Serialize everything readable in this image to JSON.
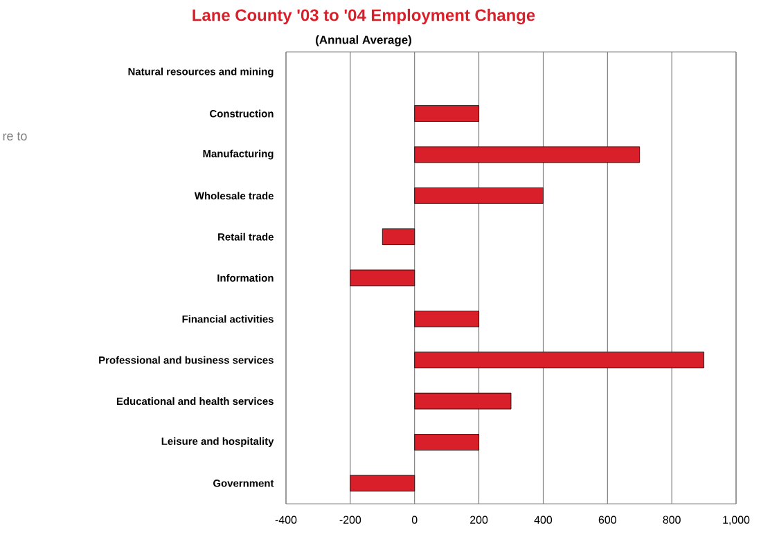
{
  "chart_data": {
    "type": "bar",
    "orientation": "horizontal",
    "title": "Lane County '03 to '04 Employment Change",
    "subtitle": "(Annual Average)",
    "categories": [
      "Natural resources and mining",
      "Construction",
      "Manufacturing",
      "Wholesale trade",
      "Retail trade",
      "Information",
      "Financial activities",
      "Professional and business services",
      "Educational and health services",
      "Leisure and hospitality",
      "Government"
    ],
    "values": [
      null,
      200,
      700,
      400,
      -100,
      -200,
      200,
      900,
      300,
      200,
      -200
    ],
    "color": "#d9202a",
    "xlim": [
      -400,
      1000
    ],
    "xticks": [
      -400,
      -200,
      0,
      200,
      400,
      600,
      800,
      {
        "value": 1000,
        "label": "1,000"
      }
    ],
    "grid": "x",
    "annotations": [
      "re to"
    ]
  }
}
